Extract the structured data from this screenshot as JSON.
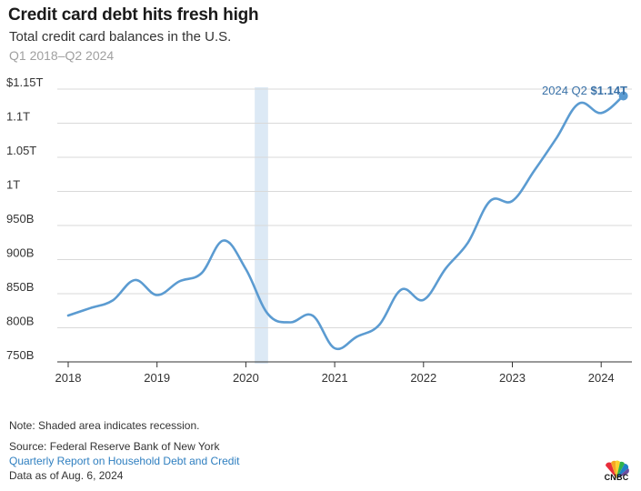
{
  "header": {
    "title": "Credit card debt hits fresh high",
    "subtitle": "Total credit card balances in the U.S.",
    "range": "Q1 2018–Q2 2024"
  },
  "chart_data": {
    "type": "line",
    "title": "Credit card debt hits fresh high",
    "subtitle": "Total credit card balances in the U.S.",
    "xlabel": "",
    "ylabel": "",
    "x_ticks": [
      "2018",
      "2019",
      "2020",
      "2021",
      "2022",
      "2023",
      "2024"
    ],
    "y_ticks": [
      {
        "value": 750,
        "label": "750B"
      },
      {
        "value": 800,
        "label": "800B"
      },
      {
        "value": 850,
        "label": "850B"
      },
      {
        "value": 900,
        "label": "900B"
      },
      {
        "value": 950,
        "label": "950B"
      },
      {
        "value": 1000,
        "label": "1T"
      },
      {
        "value": 1050,
        "label": "1.05T"
      },
      {
        "value": 1100,
        "label": "1.1T"
      },
      {
        "value": 1150,
        "label": "$1.15T"
      }
    ],
    "ylim": [
      750,
      1150
    ],
    "grid": true,
    "recession_shading": {
      "start": 2020.1,
      "end": 2020.25
    },
    "series": [
      {
        "color": "#5b9bd1",
        "points": [
          {
            "x": 2018.0,
            "y": 818
          },
          {
            "x": 2018.25,
            "y": 829
          },
          {
            "x": 2018.5,
            "y": 840
          },
          {
            "x": 2018.75,
            "y": 870
          },
          {
            "x": 2019.0,
            "y": 848
          },
          {
            "x": 2019.25,
            "y": 868
          },
          {
            "x": 2019.5,
            "y": 880
          },
          {
            "x": 2019.75,
            "y": 928
          },
          {
            "x": 2020.0,
            "y": 886
          },
          {
            "x": 2020.25,
            "y": 820
          },
          {
            "x": 2020.5,
            "y": 808
          },
          {
            "x": 2020.75,
            "y": 818
          },
          {
            "x": 2021.0,
            "y": 770
          },
          {
            "x": 2021.25,
            "y": 787
          },
          {
            "x": 2021.5,
            "y": 804
          },
          {
            "x": 2021.75,
            "y": 856
          },
          {
            "x": 2022.0,
            "y": 841
          },
          {
            "x": 2022.25,
            "y": 887
          },
          {
            "x": 2022.5,
            "y": 925
          },
          {
            "x": 2022.75,
            "y": 986
          },
          {
            "x": 2023.0,
            "y": 986
          },
          {
            "x": 2023.25,
            "y": 1031
          },
          {
            "x": 2023.5,
            "y": 1079
          },
          {
            "x": 2023.75,
            "y": 1129
          },
          {
            "x": 2024.0,
            "y": 1115
          },
          {
            "x": 2024.25,
            "y": 1140
          }
        ]
      }
    ],
    "annotation": {
      "prefix": "2024 Q2",
      "value": "$1.14T"
    }
  },
  "footer": {
    "note": "Note: Shaded area indicates recession.",
    "source": "Source: Federal Reserve Bank of New York",
    "link": "Quarterly Report on Household Debt and Credit",
    "date": "Data as of Aug. 6, 2024",
    "logo": "CNBC",
    "logo_icon": "peacock-icon"
  },
  "colors": {
    "line": "#5b9bd1",
    "shade": "#dce9f5",
    "grid": "#d9d9d9",
    "annotation": "#3a72a8",
    "link": "#2f7fc0"
  }
}
